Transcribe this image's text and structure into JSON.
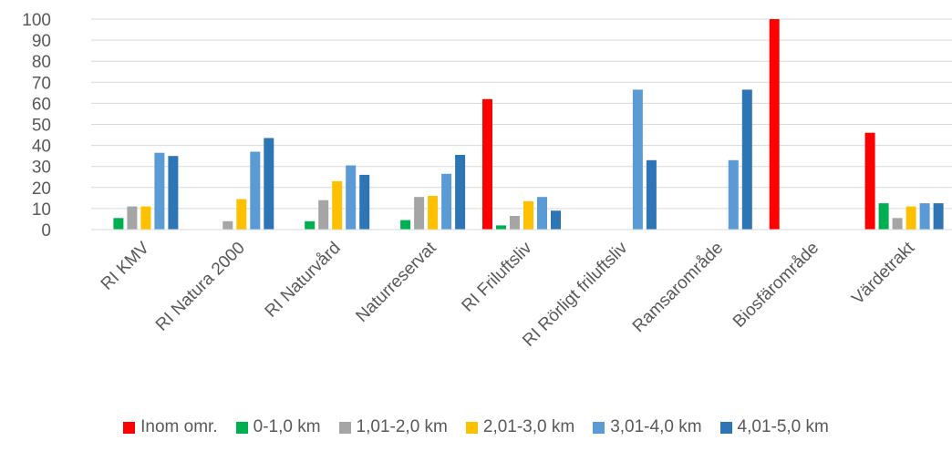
{
  "chart_data": {
    "type": "bar",
    "categories": [
      "RI KMV",
      "RI Natura 2000",
      "RI Naturvård",
      "Naturreservat",
      "RI Friluftsliv",
      "RI Rörligt friluftsliv",
      "Ramsarområde",
      "Biosfärområde",
      "Värdetrakt"
    ],
    "series": [
      {
        "name": "Inom omr.",
        "color": "#ff0000",
        "values": [
          0,
          0,
          0,
          0,
          62,
          0,
          0,
          100,
          46
        ]
      },
      {
        "name": "0-1,0 km",
        "color": "#00b050",
        "values": [
          5.5,
          0,
          4,
          4.5,
          2,
          0,
          0,
          0,
          12.5
        ]
      },
      {
        "name": "1,01-2,0 km",
        "color": "#a5a5a5",
        "values": [
          11,
          4,
          14,
          15.5,
          6.5,
          0,
          0,
          0,
          5.5
        ]
      },
      {
        "name": "2,01-3,0 km",
        "color": "#ffc000",
        "values": [
          11,
          14.5,
          23,
          16,
          13.5,
          0,
          0,
          0,
          11
        ]
      },
      {
        "name": "3,01-4,0 km",
        "color": "#5b9bd5",
        "values": [
          36.5,
          37,
          30.5,
          26.5,
          15.5,
          66.5,
          33,
          0,
          12.5
        ]
      },
      {
        "name": "4,01-5,0 km",
        "color": "#2e75b6",
        "values": [
          35,
          43.5,
          26,
          35.5,
          9,
          33,
          66.5,
          0,
          12.5
        ]
      }
    ],
    "yticks": [
      "0",
      "10",
      "20",
      "30",
      "40",
      "50",
      "60",
      "70",
      "80",
      "90",
      "100"
    ],
    "ylim": [
      0,
      100
    ],
    "grid": true,
    "legend_position": "bottom"
  }
}
